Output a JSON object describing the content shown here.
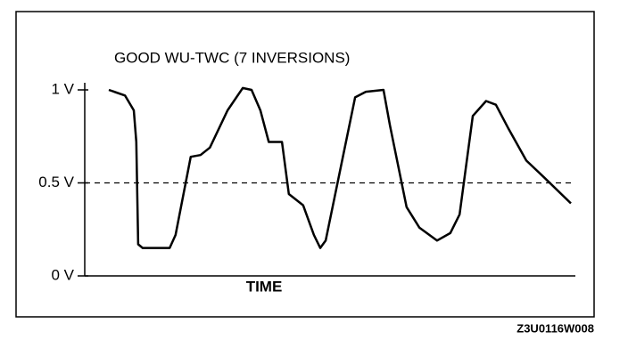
{
  "chart_data": {
    "type": "line",
    "title": "GOOD WU-TWC (7 INVERSIONS)",
    "xlabel": "TIME",
    "caption": "Z3U0116W008",
    "xlim": [
      0,
      100
    ],
    "ylim": [
      0,
      1
    ],
    "yticks": [
      {
        "value": 0,
        "label": "0 V"
      },
      {
        "value": 0.5,
        "label": "0.5 V"
      },
      {
        "value": 1,
        "label": "1 V"
      }
    ],
    "reference_lines": [
      0.5
    ],
    "color": "#000000",
    "x": [
      4.9,
      8.2,
      10,
      10.5,
      10.9,
      11.8,
      17.3,
      18.5,
      21.6,
      23.6,
      25.5,
      29.1,
      32.2,
      34,
      35.8,
      37.5,
      40.2,
      41.6,
      44.5,
      46.7,
      48,
      49.1,
      55.1,
      57.3,
      60.9,
      62.2,
      65.6,
      68.2,
      71.8,
      74.5,
      76.4,
      79.1,
      81.8,
      83.8,
      86.4,
      90,
      93.6,
      99.1
    ],
    "values": [
      1.0,
      0.97,
      0.89,
      0.72,
      0.17,
      0.15,
      0.15,
      0.22,
      0.64,
      0.65,
      0.69,
      0.89,
      1.01,
      1.0,
      0.89,
      0.72,
      0.72,
      0.44,
      0.38,
      0.22,
      0.15,
      0.19,
      0.96,
      0.99,
      1.0,
      0.81,
      0.37,
      0.26,
      0.19,
      0.23,
      0.33,
      0.86,
      0.94,
      0.92,
      0.79,
      0.62,
      0.53,
      0.39
    ]
  }
}
